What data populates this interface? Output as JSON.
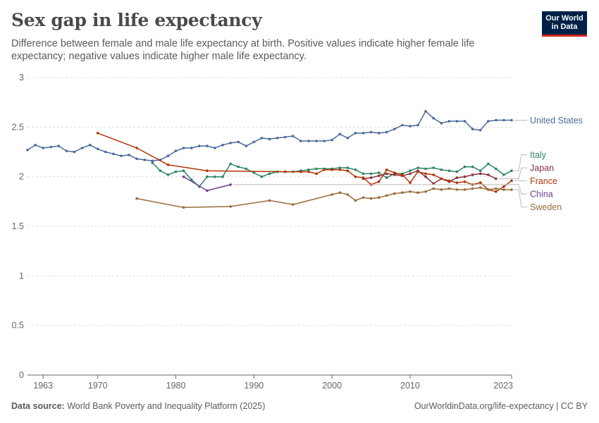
{
  "header": {
    "title": "Sex gap in life expectancy",
    "subtitle": "Difference between female and male life expectancy at birth. Positive values indicate higher female life expectancy; negative values indicate higher male life expectancy."
  },
  "logo": {
    "line1": "Our World",
    "line2": "in Data"
  },
  "footer": {
    "source_label": "Data source:",
    "source_text": "World Bank Poverty and Inequality Platform (2025)",
    "credit": "OurWorldinData.org/life-expectancy | CC BY"
  },
  "colors": {
    "grid": "#dddddd",
    "axis": "#666666",
    "text": "#5b5b5b"
  },
  "chart_data": {
    "type": "line",
    "title": "Sex gap in life expectancy",
    "ylim": [
      0,
      3
    ],
    "xlim": [
      1961,
      2023
    ],
    "yticks": [
      0,
      0.5,
      1,
      1.5,
      2,
      2.5,
      3
    ],
    "yticklabels": [
      "0",
      "0.5",
      "1",
      "1.5",
      "2",
      "2.5",
      "3"
    ],
    "xticks": [
      1963,
      1970,
      1980,
      1990,
      2000,
      2010,
      2023
    ],
    "xticklabels": [
      "1963",
      "1970",
      "1980",
      "1990",
      "2000",
      "2010",
      "2023"
    ],
    "grid": "horizontal dashed",
    "legend": "right, end of lines",
    "series": [
      {
        "name": "United States",
        "color": "#4c6a9c",
        "x": [
          1961,
          1962,
          1963,
          1964,
          1965,
          1966,
          1967,
          1968,
          1969,
          1970,
          1971,
          1972,
          1973,
          1974,
          1975,
          1976,
          1977,
          1978,
          1979,
          1980,
          1981,
          1982,
          1983,
          1984,
          1985,
          1986,
          1987,
          1988,
          1989,
          1990,
          1991,
          1992,
          1993,
          1994,
          1995,
          1996,
          1997,
          1998,
          1999,
          2000,
          2001,
          2002,
          2003,
          2004,
          2005,
          2006,
          2007,
          2008,
          2009,
          2010,
          2011,
          2012,
          2013,
          2014,
          2015,
          2016,
          2017,
          2018,
          2019,
          2020,
          2021,
          2022,
          2023
        ],
        "y": [
          2.27,
          2.32,
          2.29,
          2.3,
          2.31,
          2.26,
          2.25,
          2.29,
          2.32,
          2.28,
          2.25,
          2.23,
          2.21,
          2.22,
          2.18,
          2.17,
          2.16,
          2.17,
          2.21,
          2.26,
          2.29,
          2.29,
          2.31,
          2.31,
          2.29,
          2.32,
          2.34,
          2.35,
          2.31,
          2.35,
          2.39,
          2.38,
          2.39,
          2.4,
          2.41,
          2.36,
          2.36,
          2.36,
          2.36,
          2.37,
          2.43,
          2.39,
          2.44,
          2.44,
          2.45,
          2.44,
          2.45,
          2.48,
          2.52,
          2.51,
          2.52,
          2.66,
          2.59,
          2.54,
          2.56,
          2.56,
          2.56,
          2.48,
          2.47,
          2.56,
          2.57,
          2.57,
          2.57
        ]
      },
      {
        "name": "Italy",
        "color": "#2c8465",
        "x": [
          1977,
          1978,
          1979,
          1980,
          1981,
          1982,
          1983,
          1984,
          1985,
          1986,
          1987,
          1988,
          1989,
          1990,
          1991,
          1992,
          1993,
          1994,
          1995,
          1996,
          1997,
          1998,
          1999,
          2000,
          2001,
          2002,
          2003,
          2004,
          2005,
          2006,
          2007,
          2008,
          2009,
          2010,
          2011,
          2012,
          2013,
          2014,
          2015,
          2016,
          2017,
          2018,
          2019,
          2020,
          2021,
          2022,
          2023
        ],
        "y": [
          2.14,
          2.06,
          2.02,
          2.05,
          2.06,
          1.97,
          1.9,
          2.0,
          2.0,
          2.0,
          2.13,
          2.1,
          2.08,
          2.04,
          2.0,
          2.03,
          2.05,
          2.05,
          2.05,
          2.06,
          2.07,
          2.08,
          2.08,
          2.08,
          2.09,
          2.09,
          2.07,
          2.03,
          2.03,
          2.04,
          1.99,
          2.03,
          2.03,
          2.06,
          2.09,
          2.08,
          2.09,
          2.07,
          2.06,
          2.05,
          2.1,
          2.1,
          2.06,
          2.13,
          2.08,
          2.02,
          2.06
        ]
      },
      {
        "name": "Japan",
        "color": "#883039",
        "x": [
          2004,
          2005,
          2006,
          2007,
          2008,
          2009,
          2010,
          2011,
          2012,
          2013,
          2014,
          2015,
          2016,
          2017,
          2018,
          2019,
          2020,
          2021
        ],
        "y": [
          1.98,
          1.99,
          2.01,
          2.03,
          2.02,
          2.01,
          2.03,
          2.06,
          2.0,
          1.93,
          1.98,
          1.95,
          1.99,
          2.0,
          2.02,
          2.03,
          2.02,
          1.98
        ]
      },
      {
        "name": "France",
        "color": "#b13507",
        "x": [
          1970,
          1975,
          1979,
          1984,
          1994,
          1996,
          1997,
          1998,
          1999,
          2000,
          2001,
          2002,
          2003,
          2004,
          2005,
          2006,
          2007,
          2008,
          2009,
          2010,
          2011,
          2012,
          2013,
          2014,
          2015,
          2016,
          2017,
          2018,
          2019,
          2020,
          2021,
          2022,
          2023
        ],
        "y": [
          2.44,
          2.29,
          2.12,
          2.06,
          2.05,
          2.05,
          2.05,
          2.03,
          2.07,
          2.07,
          2.07,
          2.06,
          2.0,
          1.99,
          1.92,
          1.95,
          2.07,
          2.04,
          2.02,
          1.94,
          2.05,
          2.03,
          2.02,
          1.98,
          1.96,
          1.94,
          1.95,
          1.92,
          1.94,
          1.87,
          1.85,
          1.9,
          1.96
        ]
      },
      {
        "name": "China",
        "color": "#6d3e91",
        "x": [
          1981,
          1984,
          1987
        ],
        "y": [
          2.0,
          1.86,
          1.92
        ]
      },
      {
        "name": "Sweden",
        "color": "#996d39",
        "x": [
          1975,
          1981,
          1987,
          1992,
          1995,
          2000,
          2001,
          2002,
          2003,
          2004,
          2005,
          2006,
          2007,
          2008,
          2009,
          2010,
          2011,
          2012,
          2013,
          2014,
          2015,
          2016,
          2017,
          2018,
          2019,
          2020,
          2021,
          2022,
          2023
        ],
        "y": [
          1.78,
          1.69,
          1.7,
          1.76,
          1.72,
          1.82,
          1.84,
          1.82,
          1.76,
          1.79,
          1.78,
          1.79,
          1.81,
          1.83,
          1.84,
          1.85,
          1.84,
          1.85,
          1.88,
          1.87,
          1.88,
          1.87,
          1.87,
          1.88,
          1.89,
          1.87,
          1.88,
          1.87,
          1.87
        ]
      }
    ]
  }
}
